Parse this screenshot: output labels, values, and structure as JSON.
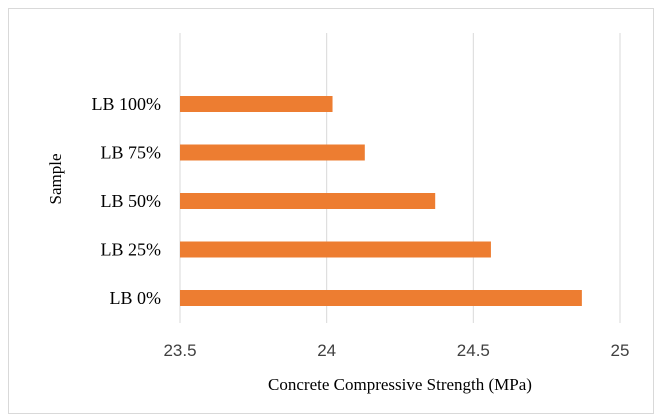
{
  "chart_data": {
    "type": "bar",
    "orientation": "horizontal",
    "categories": [
      "LB 0%",
      "LB 25%",
      "LB 50%",
      "LB 75%",
      "LB 100%"
    ],
    "values": [
      24.87,
      24.56,
      24.37,
      24.13,
      24.02
    ],
    "xlabel": "Concrete Compressive Strength (MPa)",
    "ylabel": "Sample",
    "xlim": [
      23.5,
      25
    ],
    "xticks": [
      "23.5",
      "24",
      "24.5",
      "25"
    ],
    "grid": "vertical",
    "legend": "none",
    "bar_color": "#ED7D31",
    "grid_color": "#d9d9d9"
  }
}
